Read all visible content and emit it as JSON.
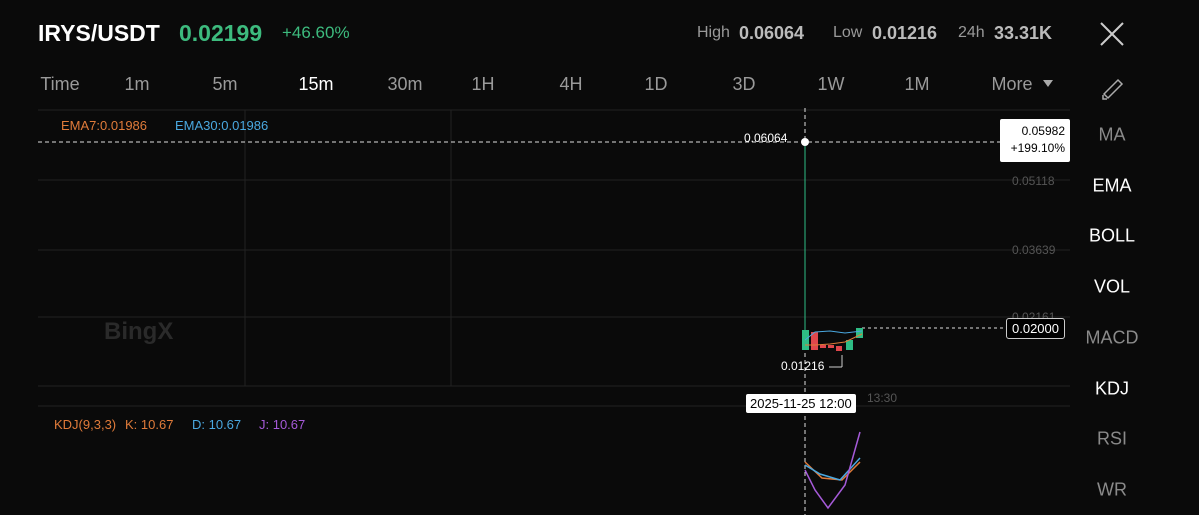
{
  "header": {
    "pair": "IRYS/USDT",
    "price": "0.02199",
    "change": "+46.60%",
    "high_label": "High",
    "high": "0.06064",
    "low_label": "Low",
    "low": "0.01216",
    "volume_label": "24h",
    "volume": "33.31K"
  },
  "intervals": [
    "Time",
    "1m",
    "5m",
    "15m",
    "30m",
    "1H",
    "4H",
    "1D",
    "3D",
    "1W",
    "1M",
    "More"
  ],
  "indicators": [
    "MA",
    "EMA",
    "BOLL",
    "VOL",
    "MACD",
    "KDJ",
    "RSI",
    "WR"
  ],
  "main_chart": {
    "ema7": "EMA7:0.01986",
    "ema30": "EMA30:0.01986",
    "watermark": "BingX",
    "price_axis": [
      "0.05118",
      "0.03639",
      "0.02161"
    ],
    "crosshair_price": "0.05982",
    "crosshair_change": "+199.10%",
    "high_marker": "0.06064",
    "low_marker": "0.01216",
    "last_price": "0.02000",
    "crosshair_time": "2025-11-25 12:00",
    "time_axis": "13:30"
  },
  "kdj": {
    "title": "KDJ(9,3,3)",
    "k": "K: 10.67",
    "d": "D: 10.67",
    "j": "J: 10.67"
  }
}
